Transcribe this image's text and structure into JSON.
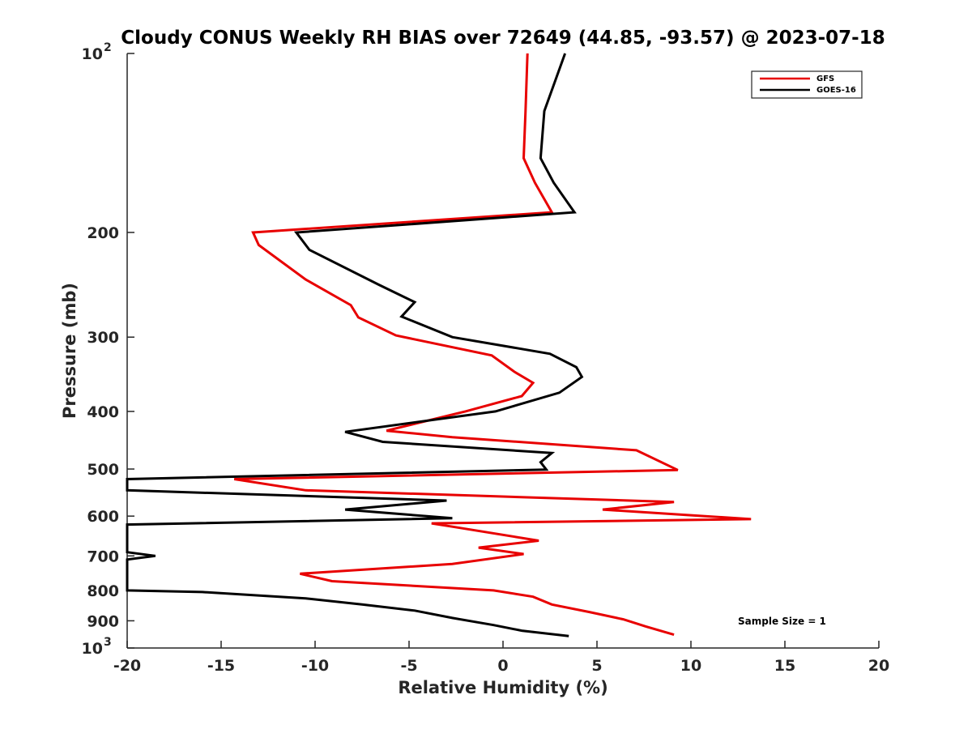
{
  "chart_data": {
    "type": "line",
    "title": "Cloudy CONUS Weekly RH BIAS over 72649 (44.85, -93.57) @ 2023-07-18",
    "xlabel": "Relative Humidity (%)",
    "ylabel": "Pressure (mb)",
    "xlim": [
      -20,
      20
    ],
    "ylim": [
      100,
      1000
    ],
    "yscale": "log",
    "y_reversed": true,
    "grid": false,
    "legend_position": "top-right",
    "x_ticks": [
      "-20",
      "-15",
      "-10",
      "-5",
      "0",
      "5",
      "10",
      "15",
      "20"
    ],
    "y_ticks": [
      {
        "value": 100,
        "base": "10",
        "exp": "2"
      },
      {
        "value": 200,
        "label": "200"
      },
      {
        "value": 300,
        "label": "300"
      },
      {
        "value": 400,
        "label": "400"
      },
      {
        "value": 500,
        "label": "500"
      },
      {
        "value": 600,
        "label": "600"
      },
      {
        "value": 700,
        "label": "700"
      },
      {
        "value": 800,
        "label": "800"
      },
      {
        "value": 900,
        "label": "900"
      },
      {
        "value": 1000,
        "base": "10",
        "exp": "3"
      }
    ],
    "annotation": "Sample Size = 1",
    "series": [
      {
        "name": "GFS",
        "color": "#e80000",
        "points": [
          [
            1.3,
            100
          ],
          [
            1.2,
            125
          ],
          [
            1.1,
            150
          ],
          [
            1.7,
            165
          ],
          [
            2.6,
            185
          ],
          [
            -13.3,
            200
          ],
          [
            -13.0,
            210
          ],
          [
            -10.5,
            240
          ],
          [
            -8.1,
            265
          ],
          [
            -7.7,
            278
          ],
          [
            -5.7,
            298
          ],
          [
            -0.6,
            322
          ],
          [
            0.6,
            343
          ],
          [
            1.6,
            358
          ],
          [
            1.0,
            377
          ],
          [
            -2.0,
            400
          ],
          [
            -6.2,
            431
          ],
          [
            -2.7,
            442
          ],
          [
            7.1,
            465
          ],
          [
            9.3,
            502
          ],
          [
            -14.3,
            520
          ],
          [
            -10.5,
            543
          ],
          [
            9.1,
            568
          ],
          [
            5.3,
            585
          ],
          [
            13.2,
            607
          ],
          [
            -3.8,
            617
          ],
          [
            -2.7,
            625
          ],
          [
            1.9,
            660
          ],
          [
            -1.3,
            678
          ],
          [
            1.1,
            695
          ],
          [
            -2.7,
            722
          ],
          [
            -10.8,
            750
          ],
          [
            -9.1,
            772
          ],
          [
            -0.5,
            800
          ],
          [
            1.6,
            820
          ],
          [
            2.6,
            845
          ],
          [
            4.6,
            870
          ],
          [
            6.4,
            895
          ],
          [
            7.6,
            920
          ],
          [
            9.1,
            950
          ]
        ]
      },
      {
        "name": "GOES-16",
        "color": "#000000",
        "points": [
          [
            3.3,
            100
          ],
          [
            2.2,
            125
          ],
          [
            2.0,
            150
          ],
          [
            2.7,
            165
          ],
          [
            3.8,
            185
          ],
          [
            -11.0,
            200
          ],
          [
            -10.3,
            214
          ],
          [
            -6.6,
            245
          ],
          [
            -4.7,
            262
          ],
          [
            -5.4,
            277
          ],
          [
            -2.7,
            300
          ],
          [
            2.5,
            320
          ],
          [
            3.9,
            337
          ],
          [
            4.2,
            350
          ],
          [
            3.0,
            372
          ],
          [
            -0.4,
            400
          ],
          [
            -8.4,
            433
          ],
          [
            -6.4,
            450
          ],
          [
            2.6,
            470
          ],
          [
            2.0,
            487
          ],
          [
            2.3,
            501
          ],
          [
            -20.0,
            520
          ],
          [
            -20.0,
            543
          ],
          [
            -3.0,
            565
          ],
          [
            -8.4,
            585
          ],
          [
            -2.7,
            605
          ],
          [
            -20.0,
            620
          ],
          [
            -20.0,
            690
          ],
          [
            -18.5,
            700
          ],
          [
            -20.0,
            710
          ],
          [
            -20.0,
            800
          ],
          [
            -16.0,
            805
          ],
          [
            -10.5,
            825
          ],
          [
            -7.5,
            845
          ],
          [
            -4.7,
            865
          ],
          [
            -2.7,
            890
          ],
          [
            -0.5,
            915
          ],
          [
            1.0,
            935
          ],
          [
            3.5,
            955
          ]
        ]
      }
    ]
  }
}
